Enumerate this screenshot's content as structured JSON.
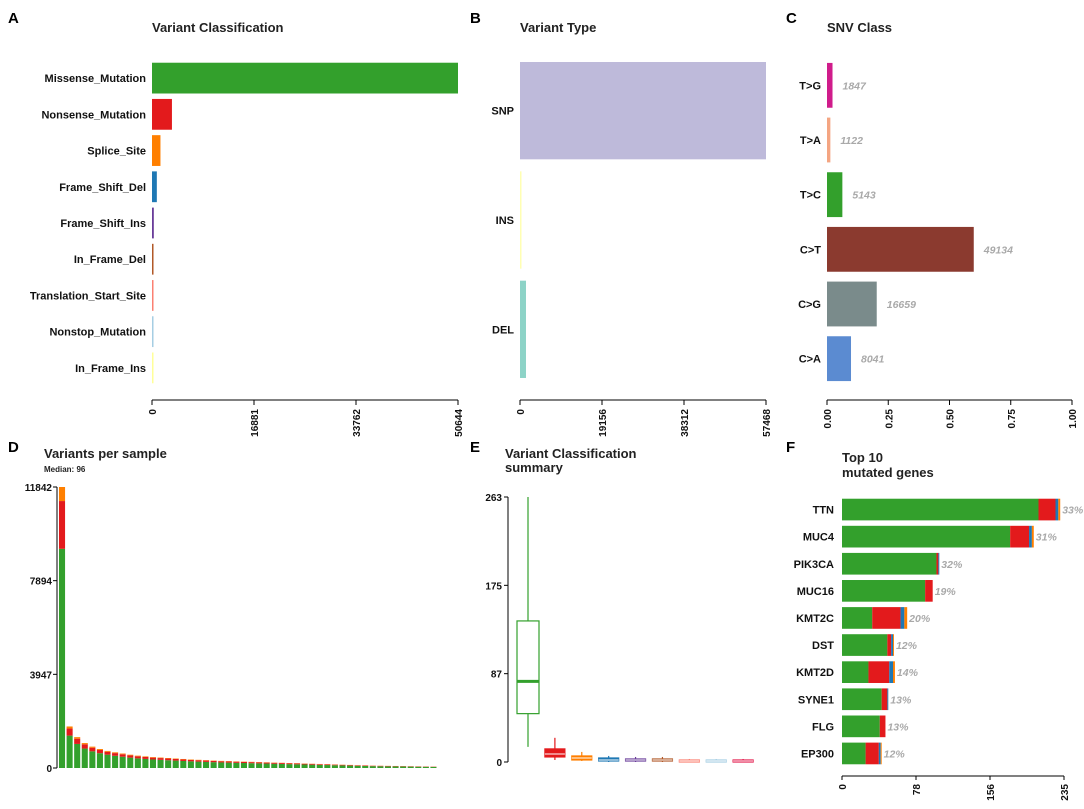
{
  "chart_data": [
    {
      "panel": "A",
      "type": "bar",
      "orientation": "horizontal",
      "title": "Variant Classification",
      "categories": [
        "Missense_Mutation",
        "Nonsense_Mutation",
        "Splice_Site",
        "Frame_Shift_Del",
        "Frame_Shift_Ins",
        "In_Frame_Del",
        "Translation_Start_Site",
        "Nonstop_Mutation",
        "In_Frame_Ins"
      ],
      "values": [
        50644,
        3300,
        1400,
        800,
        300,
        250,
        200,
        120,
        20
      ],
      "colors": [
        "#33a02c",
        "#e31a1c",
        "#ff7f00",
        "#1f78b4",
        "#6a3d9a",
        "#b15928",
        "#fb8072",
        "#a6cee3",
        "#ffff99"
      ],
      "xticks": [
        "0",
        "16881",
        "33762",
        "50644"
      ],
      "xlim": [
        0,
        50644
      ]
    },
    {
      "panel": "B",
      "type": "bar",
      "orientation": "horizontal",
      "title": "Variant Type",
      "categories": [
        "SNP",
        "INS",
        "DEL"
      ],
      "values": [
        57468,
        300,
        1400
      ],
      "colors": [
        "#bebada",
        "#ffffb3",
        "#8dd3c7"
      ],
      "xticks": [
        "0",
        "19156",
        "38312",
        "57468"
      ],
      "xlim": [
        0,
        57468
      ]
    },
    {
      "panel": "C",
      "type": "bar",
      "orientation": "horizontal",
      "title": "SNV Class",
      "categories": [
        "T>G",
        "T>A",
        "T>C",
        "C>T",
        "C>G",
        "C>A"
      ],
      "counts": [
        "1847",
        "1122",
        "5143",
        "49134",
        "16659",
        "8041"
      ],
      "values": [
        0.0225,
        0.0137,
        0.0627,
        0.599,
        0.203,
        0.098
      ],
      "colors": [
        "#d01c8b",
        "#f4a582",
        "#33a02c",
        "#8b3a2f",
        "#7a8b8b",
        "#5b8bd1"
      ],
      "xticks": [
        "0.00",
        "0.25",
        "0.50",
        "0.75",
        "1.00"
      ],
      "xlim": [
        0,
        1
      ]
    },
    {
      "panel": "D",
      "type": "bar",
      "stacked": true,
      "title": "Variants per sample",
      "subtitle": "Median: 96",
      "yticks": [
        "0",
        "3947",
        "7894",
        "11842"
      ],
      "ylim": [
        0,
        11842
      ],
      "values": [
        11842,
        1750,
        1300,
        1050,
        900,
        800,
        720,
        660,
        610,
        560,
        520,
        490,
        460,
        440,
        420,
        400,
        380,
        360,
        345,
        330,
        315,
        300,
        290,
        280,
        270,
        260,
        250,
        240,
        230,
        220,
        210,
        200,
        190,
        180,
        170,
        160,
        150,
        140,
        130,
        120,
        110,
        100,
        95,
        90,
        85,
        80,
        75,
        70,
        65,
        60
      ],
      "series_colors": [
        "#33a02c",
        "#e31a1c",
        "#ff7f00"
      ]
    },
    {
      "panel": "E",
      "type": "boxplot",
      "title": [
        "Variant Classification",
        "summary"
      ],
      "yticks": [
        "0",
        "87",
        "175",
        "263"
      ],
      "ylim": [
        0,
        263
      ],
      "boxes": [
        {
          "color": "#33a02c",
          "min": 15,
          "q1": 48,
          "median": 80,
          "q3": 140,
          "max": 263
        },
        {
          "color": "#e31a1c",
          "min": 2,
          "q1": 5,
          "median": 8,
          "q3": 13,
          "max": 24
        },
        {
          "color": "#ff7f00",
          "min": 1,
          "q1": 2,
          "median": 4,
          "q3": 6,
          "max": 10
        },
        {
          "color": "#1f78b4",
          "min": 0,
          "q1": 1,
          "median": 2,
          "q3": 4,
          "max": 6
        },
        {
          "color": "#6a3d9a",
          "min": 0,
          "q1": 1,
          "median": 2,
          "q3": 3,
          "max": 5
        },
        {
          "color": "#b15928",
          "min": 0,
          "q1": 1,
          "median": 2,
          "q3": 3,
          "max": 5
        },
        {
          "color": "#fb8072",
          "min": 0,
          "q1": 0,
          "median": 1,
          "q3": 2,
          "max": 3
        },
        {
          "color": "#a6cee3",
          "min": 0,
          "q1": 0,
          "median": 1,
          "q3": 2,
          "max": 3
        },
        {
          "color": "#e31a4c",
          "min": 0,
          "q1": 0,
          "median": 1,
          "q3": 2,
          "max": 3
        }
      ]
    },
    {
      "panel": "F",
      "type": "bar",
      "orientation": "horizontal",
      "stacked": true,
      "title": [
        "Top 10",
        "mutated genes"
      ],
      "categories": [
        "TTN",
        "MUC4",
        "PIK3CA",
        "MUC16",
        "KMT2C",
        "DST",
        "KMT2D",
        "SYNE1",
        "FLG",
        "EP300"
      ],
      "percent_labels": [
        "33%",
        "31%",
        "32%",
        "19%",
        "20%",
        "12%",
        "14%",
        "13%",
        "13%",
        "12%"
      ],
      "segments": [
        [
          208,
          18,
          3,
          2
        ],
        [
          178,
          20,
          3,
          2
        ],
        [
          100,
          2,
          1,
          0
        ],
        [
          88,
          8,
          0,
          0
        ],
        [
          32,
          30,
          4,
          3
        ],
        [
          48,
          4,
          2,
          1
        ],
        [
          28,
          22,
          4,
          2
        ],
        [
          42,
          6,
          1,
          0
        ],
        [
          40,
          6,
          0,
          0
        ],
        [
          25,
          14,
          2,
          1
        ]
      ],
      "segment_colors": [
        "#33a02c",
        "#e31a1c",
        "#1f78b4",
        "#ff7f00"
      ],
      "xticks": [
        "0",
        "78",
        "156",
        "235"
      ],
      "xlim": [
        0,
        235
      ]
    }
  ],
  "panel_letters": [
    "A",
    "B",
    "C",
    "D",
    "E",
    "F"
  ]
}
